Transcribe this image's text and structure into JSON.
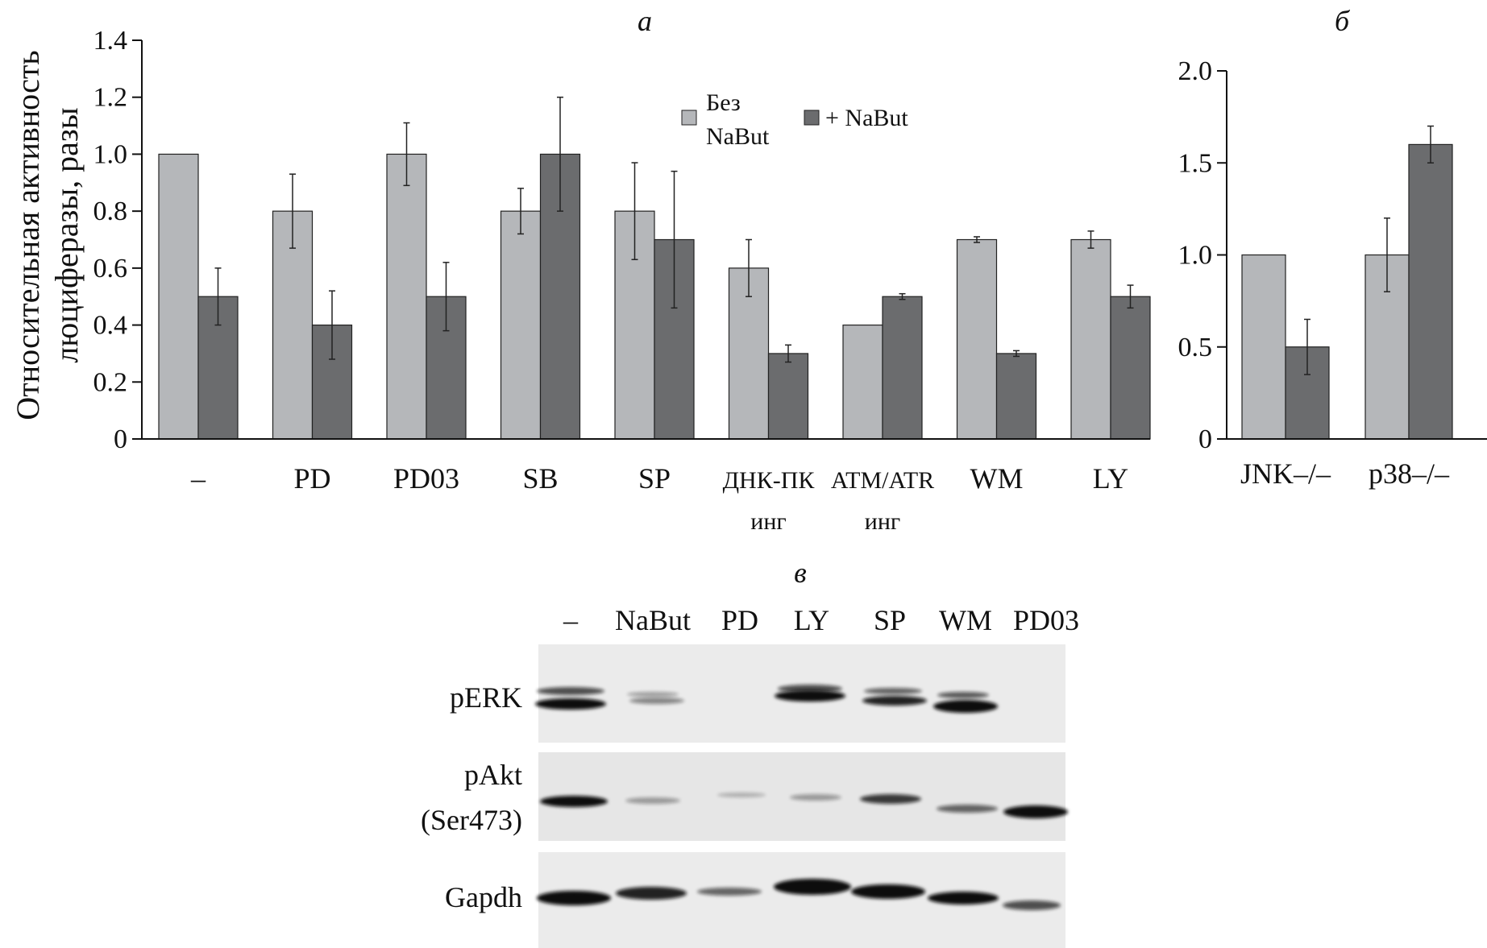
{
  "chart_data": [
    {
      "panel": "а",
      "type": "bar",
      "ylabel": "Относительная активность люциферазы, разы",
      "ylim": [
        0,
        1.4
      ],
      "yticks": [
        "0",
        "0.2",
        "0.4",
        "0.6",
        "0.8",
        "1.0",
        "1.2",
        "1.4"
      ],
      "categories": [
        {
          "line1": "–",
          "line2": ""
        },
        {
          "line1": "PD",
          "line2": ""
        },
        {
          "line1": "PD03",
          "line2": ""
        },
        {
          "line1": "SB",
          "line2": ""
        },
        {
          "line1": "SP",
          "line2": ""
        },
        {
          "line1": "ДНК-ПК",
          "line2": "инг"
        },
        {
          "line1": "ATM/ATR",
          "line2": "инг"
        },
        {
          "line1": "WM",
          "line2": ""
        },
        {
          "line1": "LY",
          "line2": ""
        }
      ],
      "legend": {
        "placement": "top-center",
        "items": [
          {
            "line1": "Без",
            "line2": "NaBut",
            "color": "#b5b7ba"
          },
          {
            "line1": "+ NaBut",
            "line2": "",
            "color": "#6b6c6e"
          }
        ]
      },
      "series": [
        {
          "values": [
            1.0,
            0.8,
            1.0,
            0.8,
            0.8,
            0.6,
            0.4,
            0.7,
            0.7
          ],
          "errors": [
            0,
            0.13,
            0.11,
            0.08,
            0.17,
            0.1,
            0,
            0.01,
            0.03
          ],
          "color": "#b5b7ba"
        },
        {
          "values": [
            0.5,
            0.4,
            0.5,
            1.0,
            0.7,
            0.3,
            0.5,
            0.3,
            0.5
          ],
          "errors": [
            0.1,
            0.12,
            0.12,
            0.2,
            0.24,
            0.03,
            0.01,
            0.01,
            0.04
          ],
          "color": "#6b6c6e"
        }
      ]
    },
    {
      "panel": "б",
      "type": "bar",
      "ylim": [
        0,
        2.0
      ],
      "yticks": [
        "0",
        "0.5",
        "1.0",
        "1.5",
        "2.0"
      ],
      "categories": [
        "JNK–/–",
        "p38–/–"
      ],
      "series": [
        {
          "values": [
            1.0,
            1.0
          ],
          "errors": [
            0,
            0.2
          ],
          "color": "#b5b7ba"
        },
        {
          "values": [
            0.5,
            1.6
          ],
          "errors": [
            0.15,
            0.1
          ],
          "color": "#6b6c6e"
        }
      ]
    }
  ],
  "blot": {
    "panel": "в",
    "lanes": [
      "–",
      "NaBut",
      "PD",
      "LY",
      "SP",
      "WM",
      "PD03"
    ],
    "rows": [
      {
        "label1": "pERK",
        "label2": ""
      },
      {
        "label1": "pAkt",
        "label2": "(Ser473)"
      },
      {
        "label1": "Gapdh",
        "label2": ""
      }
    ]
  }
}
